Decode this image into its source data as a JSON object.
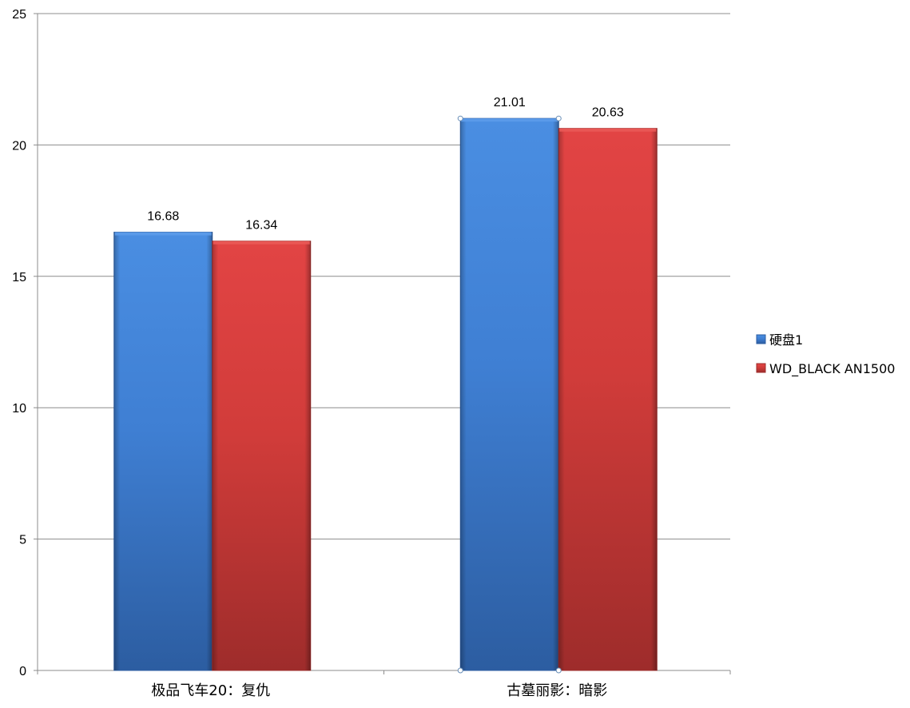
{
  "chart_data": {
    "type": "bar",
    "categories": [
      "极品飞车20：复仇",
      "古墓丽影：暗影"
    ],
    "series": [
      {
        "name": "硬盘1",
        "values": [
          16.68,
          21.01
        ],
        "color": "#3f7fd3"
      },
      {
        "name": "WD_BLACK AN1500",
        "values": [
          16.34,
          20.63
        ],
        "color": "#d13c3a"
      }
    ],
    "data_labels": [
      [
        "16.68",
        "21.01"
      ],
      [
        "16.34",
        "20.63"
      ]
    ],
    "y_ticks": [
      "0",
      "5",
      "10",
      "15",
      "20",
      "25"
    ],
    "ylim": [
      0,
      25
    ],
    "grid": true,
    "legend": "right",
    "title": "",
    "xlabel": "",
    "ylabel": ""
  }
}
